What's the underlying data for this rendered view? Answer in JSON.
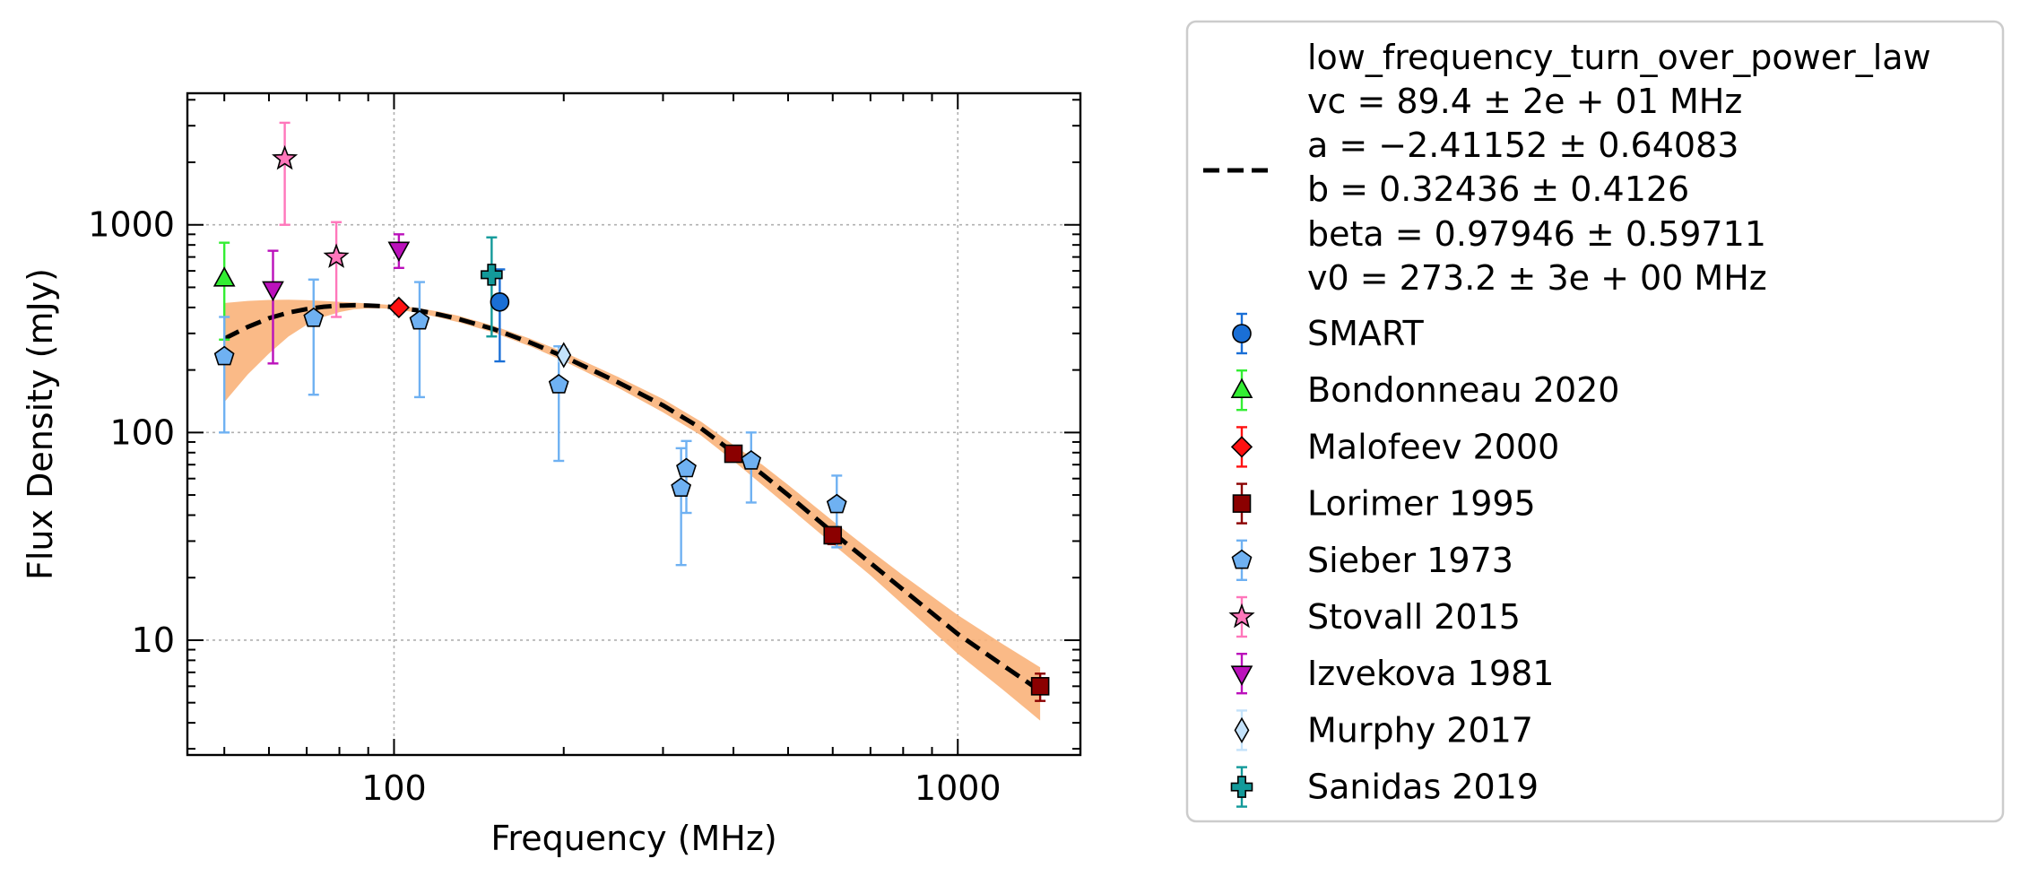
{
  "chart_data": {
    "type": "scatter",
    "xlabel": "Frequency (MHz)",
    "ylabel": "Flux Density (mJy)",
    "xscale": "log",
    "yscale": "log",
    "xlim": [
      43,
      1650
    ],
    "ylim": [
      2.8,
      4300
    ],
    "xticks": [
      100,
      1000
    ],
    "xtick_labels": [
      "100",
      "1000"
    ],
    "yticks": [
      10,
      100,
      1000
    ],
    "ytick_labels": [
      "10",
      "100",
      "1000"
    ],
    "grid": true,
    "legend_position": "outside-right",
    "fit": {
      "name": "low_frequency_turn_over_power_law",
      "param_lines": [
        "vc = 89.4 ± 2e + 01 MHz",
        "a = −2.41152 ± 0.64083",
        "b = 0.32436 ± 0.4126",
        "beta = 0.97946 ± 0.59711",
        "v0 = 273.2 ± 3e + 00 MHz"
      ],
      "x": [
        50,
        55,
        60,
        65,
        70,
        75,
        80,
        85,
        90,
        95,
        100,
        110,
        120,
        130,
        150,
        175,
        200,
        250,
        300,
        350,
        400,
        450,
        500,
        600,
        700,
        800,
        1000,
        1200,
        1400
      ],
      "y": [
        283,
        322,
        355,
        378,
        393,
        403,
        408,
        410,
        409,
        406,
        401,
        388,
        370,
        352,
        315,
        270,
        232,
        174,
        135,
        105,
        80,
        63,
        50,
        33,
        23.5,
        17.5,
        10.7,
        7.6,
        5.7
      ],
      "band_upper": [
        420,
        430,
        435,
        436,
        434,
        430,
        426,
        422,
        418,
        414,
        410,
        398,
        382,
        365,
        327,
        282,
        244,
        185,
        145,
        113,
        87,
        70,
        56,
        37.5,
        27,
        20.5,
        13.2,
        9.6,
        7.4
      ],
      "band_lower": [
        140,
        190,
        240,
        290,
        330,
        360,
        380,
        392,
        396,
        396,
        393,
        378,
        358,
        340,
        303,
        259,
        221,
        164,
        125,
        97,
        73,
        56,
        44,
        29,
        20.5,
        14.8,
        8.6,
        5.8,
        4.1
      ],
      "color": "#000000",
      "band_color": "#f9b27a"
    },
    "series": [
      {
        "name": "SMART",
        "marker": "circle",
        "color": "#1a6fd6",
        "ecolor": "#1a6fd6",
        "points": [
          {
            "x": 154,
            "y": 425,
            "lo": 220,
            "hi": 610
          }
        ]
      },
      {
        "name": "Bondonneau 2020",
        "marker": "triangle-up",
        "color": "#33ee33",
        "ecolor": "#33ee33",
        "points": [
          {
            "x": 50,
            "y": 550,
            "lo": 280,
            "hi": 820
          }
        ]
      },
      {
        "name": "Malofeev 2000",
        "marker": "diamond",
        "color": "#ff1111",
        "ecolor": "#ff1111",
        "points": [
          {
            "x": 102,
            "y": 400,
            "lo": 390,
            "hi": 410
          }
        ]
      },
      {
        "name": "Lorimer 1995",
        "marker": "square",
        "color": "#8b0000",
        "ecolor": "#8b0000",
        "points": [
          {
            "x": 400,
            "y": 79,
            "lo": 76,
            "hi": 82
          },
          {
            "x": 600,
            "y": 32,
            "lo": 29,
            "hi": 35
          },
          {
            "x": 1400,
            "y": 6,
            "lo": 5.1,
            "hi": 6.9
          }
        ]
      },
      {
        "name": "Sieber 1973",
        "marker": "pentagon",
        "color": "#6fb1f2",
        "ecolor": "#6fb1f2",
        "points": [
          {
            "x": 50,
            "y": 232,
            "lo": 100,
            "hi": 360
          },
          {
            "x": 72,
            "y": 355,
            "lo": 152,
            "hi": 545
          },
          {
            "x": 111,
            "y": 345,
            "lo": 148,
            "hi": 530
          },
          {
            "x": 196,
            "y": 170,
            "lo": 73,
            "hi": 260
          },
          {
            "x": 323,
            "y": 54,
            "lo": 23,
            "hi": 84
          },
          {
            "x": 330,
            "y": 67,
            "lo": 41,
            "hi": 91
          },
          {
            "x": 430,
            "y": 73,
            "lo": 46,
            "hi": 100
          },
          {
            "x": 610,
            "y": 45,
            "lo": 28,
            "hi": 62
          }
        ]
      },
      {
        "name": "Stovall 2015",
        "marker": "star",
        "color": "#ff77bb",
        "ecolor": "#ff77bb",
        "points": [
          {
            "x": 64,
            "y": 2080,
            "lo": 1000,
            "hi": 3100
          },
          {
            "x": 79,
            "y": 700,
            "lo": 360,
            "hi": 1030
          }
        ]
      },
      {
        "name": "Izvekova 1981",
        "marker": "triangle-down",
        "color": "#bb11bb",
        "ecolor": "#bb11bb",
        "points": [
          {
            "x": 61,
            "y": 490,
            "lo": 215,
            "hi": 750
          },
          {
            "x": 102,
            "y": 760,
            "lo": 620,
            "hi": 900
          }
        ]
      },
      {
        "name": "Murphy 2017",
        "marker": "thin-diamond",
        "color": "#c4e2fa",
        "ecolor": "#c4e2fa",
        "points": [
          {
            "x": 200,
            "y": 236,
            "lo": 220,
            "hi": 252
          }
        ]
      },
      {
        "name": "Sanidas 2019",
        "marker": "plus",
        "color": "#139a9a",
        "ecolor": "#139a9a",
        "points": [
          {
            "x": 149,
            "y": 575,
            "lo": 290,
            "hi": 870
          }
        ]
      }
    ]
  }
}
